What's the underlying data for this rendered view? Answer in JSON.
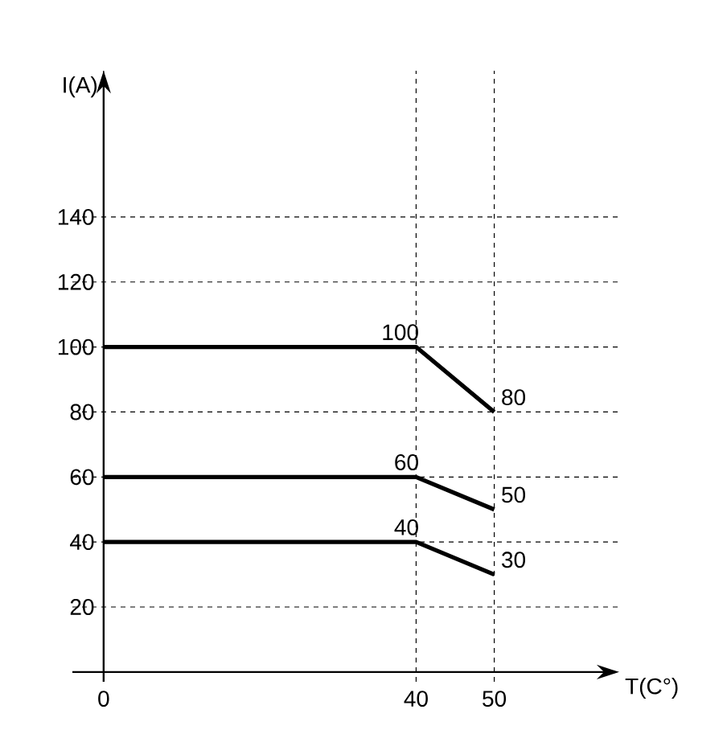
{
  "chart_data": {
    "type": "line",
    "xlabel": "T(C°)",
    "ylabel": "I(A)",
    "x": [
      0,
      40,
      50
    ],
    "series": [
      {
        "color": "#000000",
        "values": [
          100,
          100,
          80
        ],
        "value_labels": [
          null,
          "100",
          "80"
        ]
      },
      {
        "color": "#000000",
        "values": [
          60,
          60,
          50
        ],
        "value_labels": [
          null,
          "60",
          "50"
        ]
      },
      {
        "color": "#000000",
        "values": [
          40,
          40,
          30
        ],
        "value_labels": [
          null,
          "40",
          "30"
        ]
      }
    ],
    "xlim": [
      -4,
      66
    ],
    "ylim": [
      -3,
      185
    ],
    "xticks": [
      0,
      40,
      50
    ],
    "yticks": [
      20,
      40,
      60,
      80,
      100,
      120,
      140
    ],
    "grid": true,
    "marker": "none",
    "line_style": "solid"
  }
}
